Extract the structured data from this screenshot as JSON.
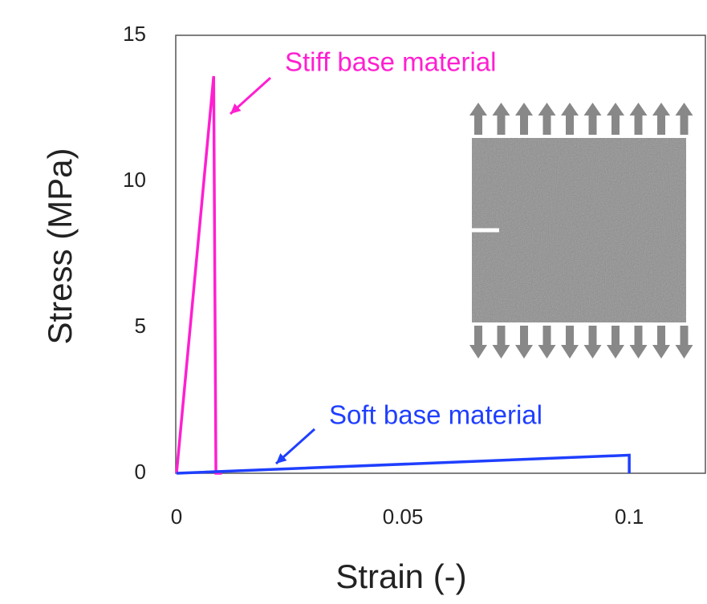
{
  "chart_data": {
    "type": "line",
    "x_label": "Strain (-)",
    "y_label": "Stress (MPa)",
    "xlim": [
      0,
      0.117
    ],
    "ylim": [
      0,
      15
    ],
    "xticks": [
      0,
      0.05,
      0.1
    ],
    "yticks": [
      0,
      5,
      10,
      15
    ],
    "grid": false,
    "series": [
      {
        "name": "Stiff base material",
        "color": "#ff1fd0",
        "x": [
          0,
          0.0082,
          0.0087,
          0.01
        ],
        "values": [
          0,
          13.6,
          0,
          0
        ]
      },
      {
        "name": "Soft base material",
        "color": "#1f3fff",
        "x": [
          0,
          0.1,
          0.1
        ],
        "values": [
          0,
          0.62,
          0
        ]
      }
    ]
  }
}
